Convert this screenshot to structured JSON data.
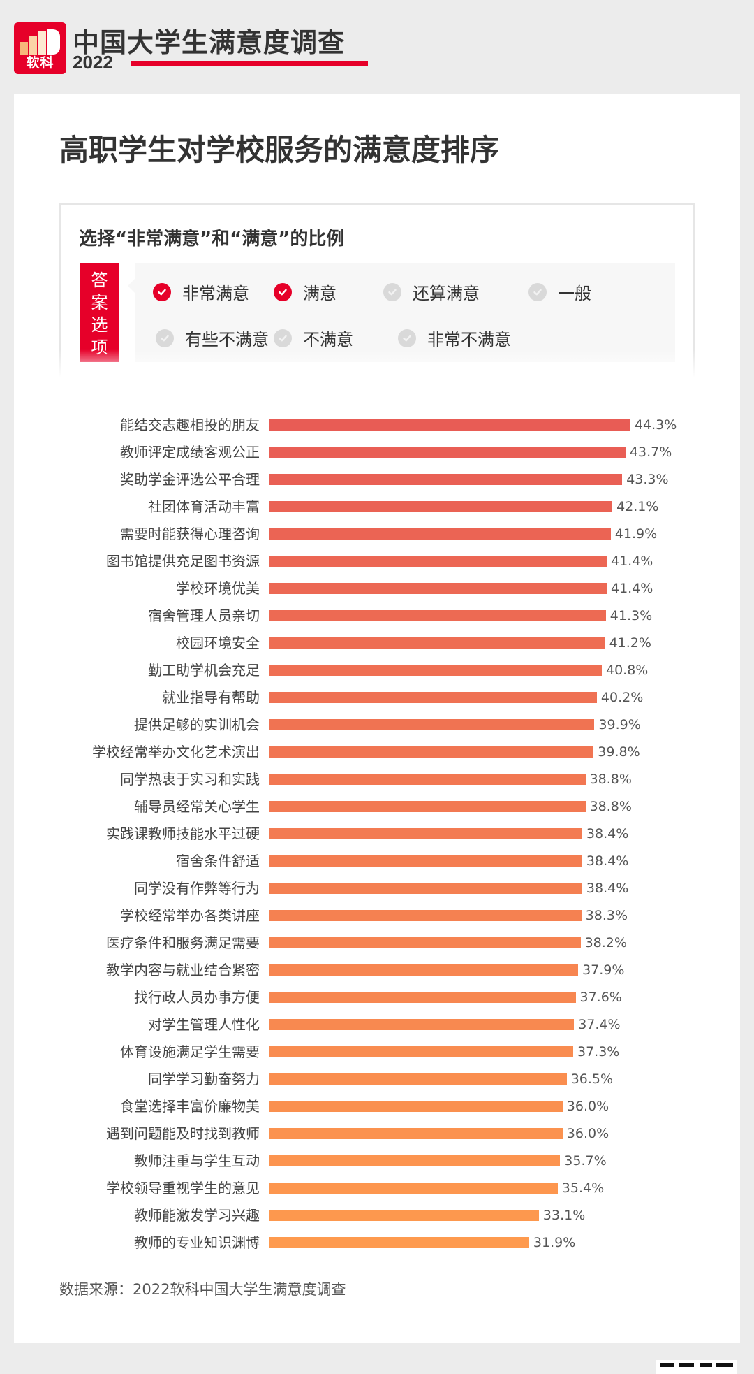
{
  "brand": {
    "logo_text": "软科",
    "title": "中国大学生满意度调查",
    "year": "2022",
    "accent_color": "#e60029"
  },
  "page": {
    "title": "高职学生对学校服务的满意度排序",
    "subtitle": "选择“非常满意”和“满意”的比例",
    "options_tag": [
      "答",
      "案",
      "选",
      "项"
    ],
    "options": [
      {
        "label": "非常满意",
        "checked": true
      },
      {
        "label": "满意",
        "checked": true
      },
      {
        "label": "还算满意",
        "checked": false
      },
      {
        "label": "一般",
        "checked": false
      },
      {
        "label": "有些不满意",
        "checked": false
      },
      {
        "label": "不满意",
        "checked": false
      },
      {
        "label": "非常不满意",
        "checked": false
      }
    ],
    "source": "数据来源：2022软科中国大学生满意度调查"
  },
  "chart_data": {
    "type": "bar",
    "orientation": "horizontal",
    "title": "高职学生对学校服务的满意度排序",
    "subtitle": "选择“非常满意”和“满意”的比例",
    "xlabel": "",
    "ylabel": "",
    "unit": "%",
    "grid": false,
    "legend": "none",
    "color_range": [
      "#e85c55",
      "#fe9a4e"
    ],
    "categories": [
      "能结交志趣相投的朋友",
      "教师评定成绩客观公正",
      "奖助学金评选公平合理",
      "社团体育活动丰富",
      "需要时能获得心理咨询",
      "图书馆提供充足图书资源",
      "学校环境优美",
      "宿舍管理人员亲切",
      "校园环境安全",
      "勤工助学机会充足",
      "就业指导有帮助",
      "提供足够的实训机会",
      "学校经常举办文化艺术演出",
      "同学热衷于实习和实践",
      "辅导员经常关心学生",
      "实践课教师技能水平过硬",
      "宿舍条件舒适",
      "同学没有作弊等行为",
      "学校经常举办各类讲座",
      "医疗条件和服务满足需要",
      "教学内容与就业结合紧密",
      "找行政人员办事方便",
      "对学生管理人性化",
      "体育设施满足学生需要",
      "同学学习勤奋努力",
      "食堂选择丰富价廉物美",
      "遇到问题能及时找到教师",
      "教师注重与学生互动",
      "学校领导重视学生的意见",
      "教师能激发学习兴趣",
      "教师的专业知识渊博"
    ],
    "values": [
      44.3,
      43.7,
      43.3,
      42.1,
      41.9,
      41.4,
      41.4,
      41.3,
      41.2,
      40.8,
      40.2,
      39.9,
      39.8,
      38.8,
      38.8,
      38.4,
      38.4,
      38.4,
      38.3,
      38.2,
      37.9,
      37.6,
      37.4,
      37.3,
      36.5,
      36.0,
      36.0,
      35.7,
      35.4,
      33.1,
      31.9
    ],
    "labels": [
      "44.3%",
      "43.7%",
      "43.3%",
      "42.1%",
      "41.9%",
      "41.4%",
      "41.4%",
      "41.3%",
      "41.2%",
      "40.8%",
      "40.2%",
      "39.9%",
      "39.8%",
      "38.8%",
      "38.8%",
      "38.4%",
      "38.4%",
      "38.4%",
      "38.3%",
      "38.2%",
      "37.9%",
      "37.6%",
      "37.4%",
      "37.3%",
      "36.5%",
      "36.0%",
      "36.0%",
      "35.7%",
      "35.4%",
      "33.1%",
      "31.9%"
    ]
  }
}
